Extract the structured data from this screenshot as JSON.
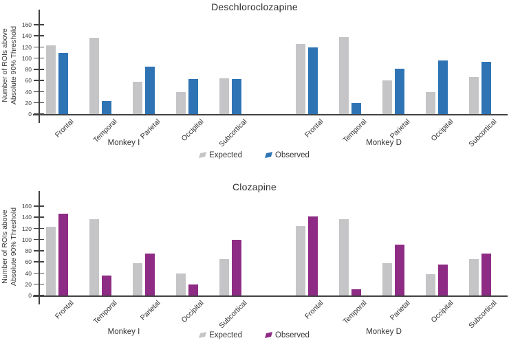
{
  "figure": {
    "background": "#ffffff",
    "axis_color": "#414042",
    "text_color": "#333333"
  },
  "chart_data": [
    {
      "type": "bar",
      "title": "Deschloroclozapine",
      "ylabel": [
        "Number of ROIs above",
        "Absolute 90% Threshold"
      ],
      "ylim": [
        0,
        160
      ],
      "yticks": [
        0,
        20,
        40,
        60,
        80,
        100,
        120,
        140,
        160
      ],
      "grid": false,
      "legend_position": "bottom-center",
      "categories": [
        "Frontal",
        "Temporal",
        "Parietal",
        "Occipital",
        "Subcortical"
      ],
      "colors": {
        "Expected": "#C5C5C7",
        "Observed": "#2E74B5"
      },
      "legend": [
        "Expected",
        "Observed"
      ],
      "groups": [
        {
          "label": "Monkey I",
          "series": [
            {
              "name": "Expected",
              "values": [
                123,
                137,
                58,
                39,
                64
              ]
            },
            {
              "name": "Observed",
              "values": [
                110,
                24,
                85,
                63,
                63
              ]
            }
          ]
        },
        {
          "label": "Monkey D",
          "series": [
            {
              "name": "Expected",
              "values": [
                125,
                138,
                60,
                40,
                66
              ]
            },
            {
              "name": "Observed",
              "values": [
                119,
                20,
                81,
                96,
                93
              ]
            }
          ]
        }
      ]
    },
    {
      "type": "bar",
      "title": "Clozapine",
      "ylabel": [
        "Number of ROIs above",
        "Absolute 90% Threshold"
      ],
      "ylim": [
        0,
        160
      ],
      "yticks": [
        0,
        20,
        40,
        60,
        80,
        100,
        120,
        140,
        160
      ],
      "grid": false,
      "legend_position": "bottom-center",
      "categories": [
        "Frontal",
        "Temporal",
        "Parietal",
        "Occipital",
        "Subcortical"
      ],
      "colors": {
        "Expected": "#C5C5C7",
        "Observed": "#8E2B84"
      },
      "legend": [
        "Expected",
        "Observed"
      ],
      "groups": [
        {
          "label": "Monkey I",
          "series": [
            {
              "name": "Expected",
              "values": [
                123,
                137,
                58,
                39,
                65
              ]
            },
            {
              "name": "Observed",
              "values": [
                147,
                36,
                75,
                20,
                100
              ]
            }
          ]
        },
        {
          "label": "Monkey D",
          "series": [
            {
              "name": "Expected",
              "values": [
                124,
                137,
                58,
                38,
                65
              ]
            },
            {
              "name": "Observed",
              "values": [
                142,
                11,
                91,
                55,
                75
              ]
            }
          ]
        }
      ]
    }
  ]
}
